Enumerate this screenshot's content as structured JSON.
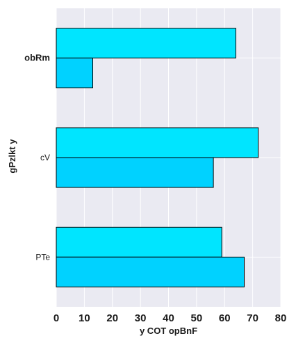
{
  "chart_data": {
    "type": "bar",
    "orientation": "horizontal",
    "categories": [
      "obRm",
      "cV",
      "PTe"
    ],
    "series": [
      {
        "name": "series-1",
        "color": "#00e5ff",
        "values": [
          64,
          72,
          59
        ]
      },
      {
        "name": "series-2",
        "color": "#00d2ff",
        "values": [
          13,
          56,
          67
        ]
      }
    ],
    "xlabel": "y COT opBnF",
    "ylabel": "gPzlkt y",
    "xlim": [
      0,
      80
    ],
    "xticks": [
      "0",
      "10",
      "20",
      "30",
      "40",
      "50",
      "60",
      "70",
      "80"
    ],
    "bold_categories": [
      "obRm"
    ],
    "grid": true,
    "background": "#eaeaf2",
    "gridline_color": "#ffffff"
  }
}
